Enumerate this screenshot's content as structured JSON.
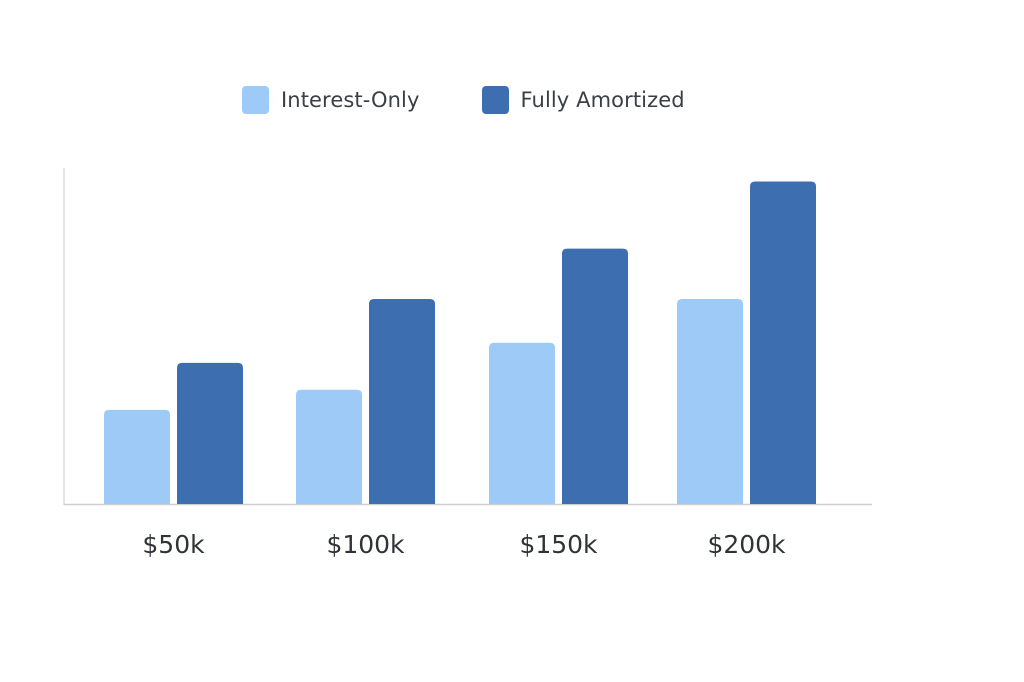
{
  "chart_data": {
    "type": "bar",
    "categories": [
      "$50k",
      "$100k",
      "$150k",
      "$200k"
    ],
    "series": [
      {
        "name": "Interest-Only",
        "color": "#9dcaf6",
        "values": [
          2.8,
          3.4,
          4.8,
          6.1
        ]
      },
      {
        "name": "Fully Amortized",
        "color": "#3d6fb0",
        "values": [
          4.2,
          6.1,
          7.6,
          9.6
        ]
      }
    ],
    "title": "",
    "xlabel": "",
    "ylabel": "",
    "ylim": [
      0,
      10
    ],
    "grid": false,
    "legend": "top-center"
  }
}
